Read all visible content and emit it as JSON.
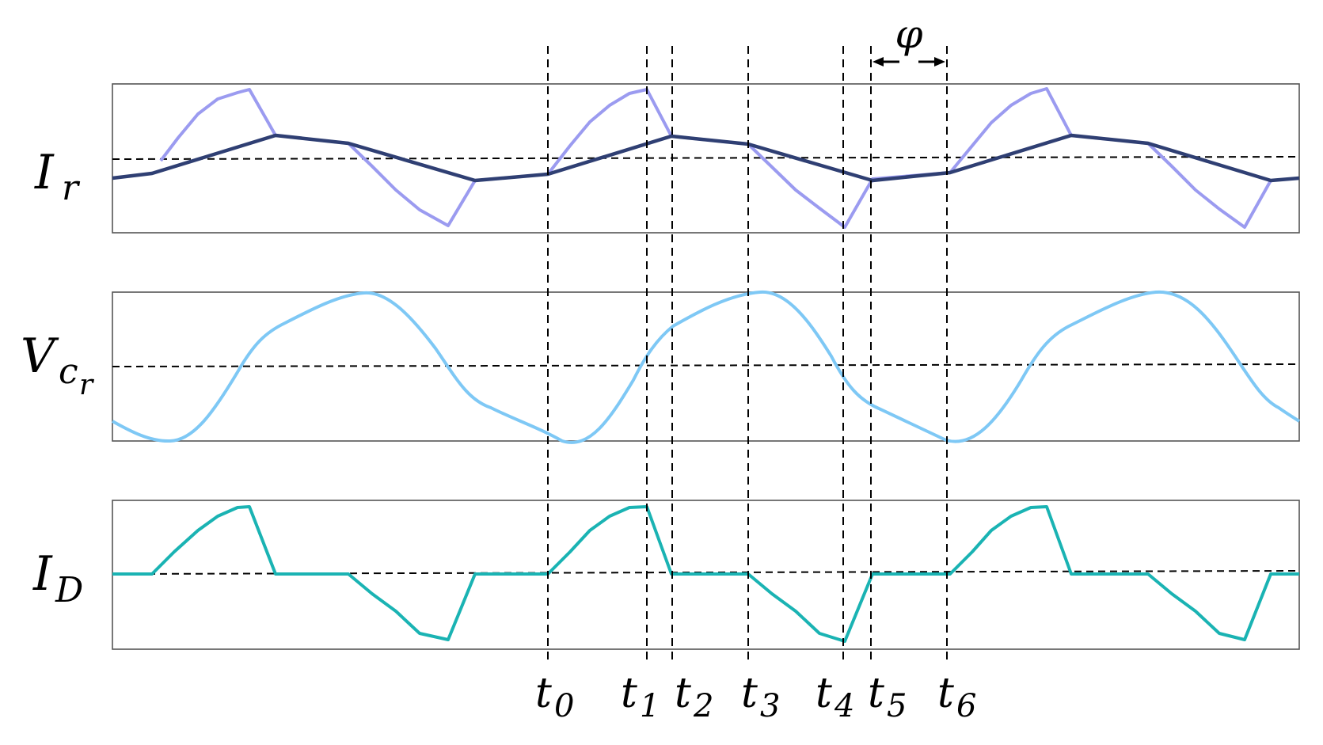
{
  "panels": [
    {
      "id": "ir",
      "label_main": "I",
      "label_sub": "r",
      "label_subsub": ""
    },
    {
      "id": "vcr",
      "label_main": "V",
      "label_sub": "c",
      "label_subsub": "r"
    },
    {
      "id": "id",
      "label_main": "I",
      "label_sub": "D",
      "label_subsub": ""
    }
  ],
  "time_markers": [
    {
      "main": "t",
      "sub": "0"
    },
    {
      "main": "t",
      "sub": "1"
    },
    {
      "main": "t",
      "sub": "2"
    },
    {
      "main": "t",
      "sub": "3"
    },
    {
      "main": "t",
      "sub": "4"
    },
    {
      "main": "t",
      "sub": "5"
    },
    {
      "main": "t",
      "sub": "6"
    }
  ],
  "phase_label": "φ",
  "colors": {
    "ir_light": "#9b9bf0",
    "ir_dark": "#2f3f73",
    "vcr": "#7ec8f5",
    "id": "#1ab3b3"
  }
}
